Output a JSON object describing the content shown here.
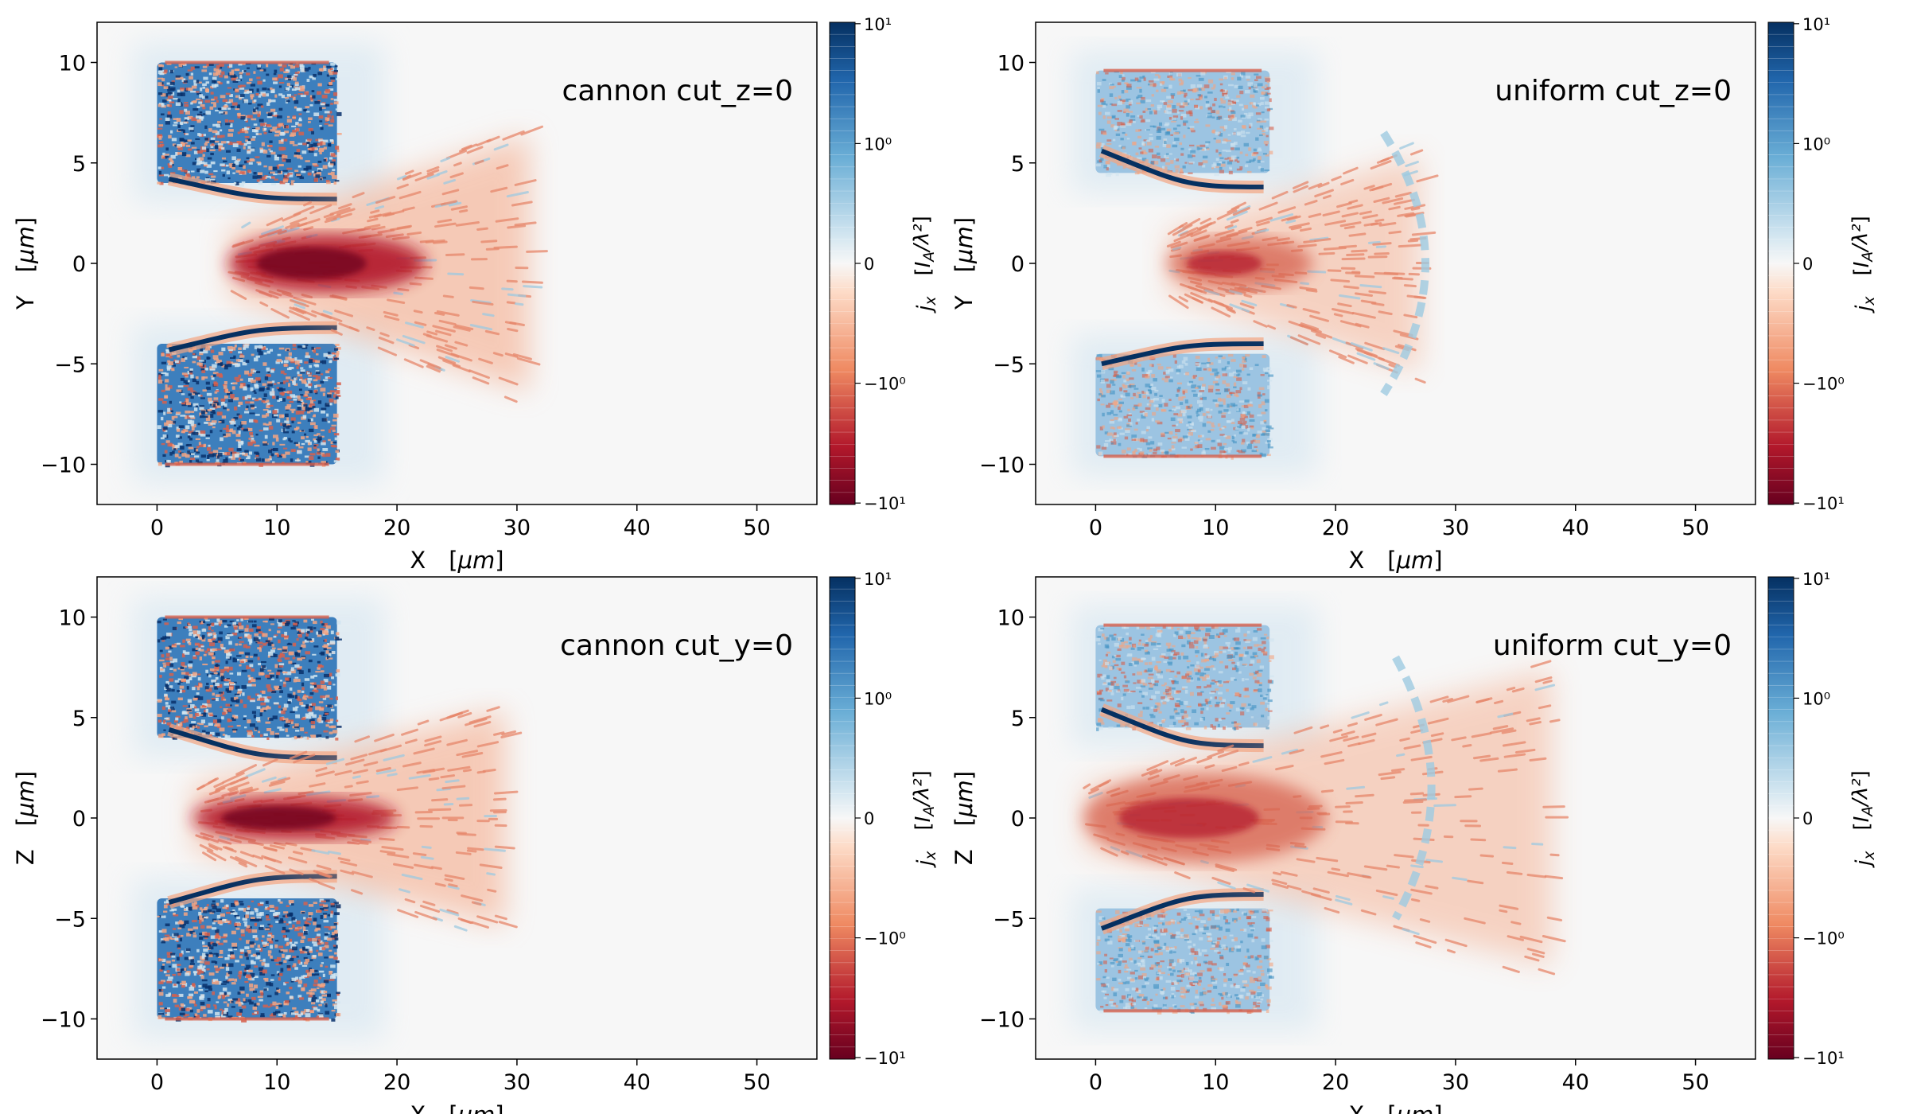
{
  "colors": {
    "background": "#f7f7f7",
    "positive": "#2166ac",
    "positive_deep": "#053061",
    "negative": "#b2182b",
    "negative_deep": "#67001f",
    "zero": "#f7f7f7"
  },
  "colorbar": {
    "label": "j_x [I_A/λ²]",
    "ticks": [
      {
        "label": "10¹",
        "value": 10
      },
      {
        "label": "10⁰",
        "value": 1
      },
      {
        "label": "0",
        "value": 0
      },
      {
        "label": "−10⁰",
        "value": -1
      },
      {
        "label": "−10¹",
        "value": -10
      }
    ],
    "scale": "symlog"
  },
  "chart_data": [
    {
      "type": "heatmap",
      "title": "cannon cut_z=0",
      "xlabel": "X [μm]",
      "ylabel": "Y [μm]",
      "xlim": [
        -5,
        55
      ],
      "ylim": [
        -12,
        12
      ],
      "xticks": [
        0,
        10,
        20,
        30,
        40,
        50
      ],
      "yticks": [
        -10,
        -5,
        0,
        5,
        10
      ],
      "colormap": "RdBu",
      "features": [
        {
          "kind": "positive_block",
          "x": [
            0,
            15
          ],
          "y": [
            4,
            10
          ]
        },
        {
          "kind": "positive_block",
          "x": [
            0,
            15
          ],
          "y": [
            -10,
            -4
          ]
        },
        {
          "kind": "edge_current",
          "x": [
            1,
            15
          ],
          "y": [
            4.2,
            3.2
          ]
        },
        {
          "kind": "edge_current",
          "x": [
            1,
            15
          ],
          "y": [
            -4.3,
            -3.2
          ]
        },
        {
          "kind": "return_jet",
          "x": [
            6,
            31
          ],
          "y": [
            -4,
            4
          ],
          "peak": -12
        }
      ]
    },
    {
      "type": "heatmap",
      "title": "uniform cut_z=0",
      "xlabel": "X [μm]",
      "ylabel": "Y [μm]",
      "xlim": [
        -5,
        55
      ],
      "ylim": [
        -12,
        12
      ],
      "xticks": [
        0,
        10,
        20,
        30,
        40,
        50
      ],
      "yticks": [
        -10,
        -5,
        0,
        5,
        10
      ],
      "colormap": "RdBu",
      "features": [
        {
          "kind": "positive_block",
          "x": [
            0,
            14.5
          ],
          "y": [
            4.5,
            9.6
          ]
        },
        {
          "kind": "positive_block",
          "x": [
            0,
            14.5
          ],
          "y": [
            -9.6,
            -4.5
          ]
        },
        {
          "kind": "edge_current",
          "x": [
            0.5,
            14
          ],
          "y": [
            5.6,
            3.8
          ]
        },
        {
          "kind": "edge_current",
          "x": [
            0.5,
            14
          ],
          "y": [
            -5,
            -4
          ]
        },
        {
          "kind": "return_jet",
          "x": [
            6,
            27
          ],
          "y": [
            -3,
            3
          ],
          "peak": -5
        },
        {
          "kind": "arc",
          "x": [
            24,
            27
          ],
          "y": [
            -6.5,
            6.5
          ]
        }
      ]
    },
    {
      "type": "heatmap",
      "title": "cannon cut_y=0",
      "xlabel": "X [μm]",
      "ylabel": "Z [μm]",
      "xlim": [
        -5,
        55
      ],
      "ylim": [
        -12,
        12
      ],
      "xticks": [
        0,
        10,
        20,
        30,
        40,
        50
      ],
      "yticks": [
        -10,
        -5,
        0,
        5,
        10
      ],
      "colormap": "RdBu",
      "features": [
        {
          "kind": "positive_block",
          "x": [
            0,
            15
          ],
          "y": [
            4,
            10
          ]
        },
        {
          "kind": "positive_block",
          "x": [
            0,
            15
          ],
          "y": [
            -10,
            -4
          ]
        },
        {
          "kind": "edge_current",
          "x": [
            1,
            15
          ],
          "y": [
            4.4,
            3
          ]
        },
        {
          "kind": "edge_current",
          "x": [
            1,
            15
          ],
          "y": [
            -4.2,
            -2.9
          ]
        },
        {
          "kind": "return_jet",
          "x": [
            3,
            29
          ],
          "y": [
            -3,
            3
          ],
          "peak": -12
        }
      ]
    },
    {
      "type": "heatmap",
      "title": "uniform cut_y=0",
      "xlabel": "X [μm]",
      "ylabel": "Z [μm]",
      "xlim": [
        -5,
        55
      ],
      "ylim": [
        -12,
        12
      ],
      "xticks": [
        0,
        10,
        20,
        30,
        40,
        50
      ],
      "yticks": [
        -10,
        -5,
        0,
        5,
        10
      ],
      "colormap": "RdBu",
      "features": [
        {
          "kind": "positive_block",
          "x": [
            0,
            14.5
          ],
          "y": [
            4.5,
            9.6
          ]
        },
        {
          "kind": "positive_block",
          "x": [
            0,
            14.5
          ],
          "y": [
            -9.6,
            -4.5
          ]
        },
        {
          "kind": "edge_current",
          "x": [
            0.5,
            14
          ],
          "y": [
            5.4,
            3.6
          ]
        },
        {
          "kind": "edge_current",
          "x": [
            0.5,
            14
          ],
          "y": [
            -5.5,
            -3.8
          ]
        },
        {
          "kind": "return_jet",
          "x": [
            -1,
            38
          ],
          "y": [
            -5,
            5
          ],
          "peak": -6
        },
        {
          "kind": "arc",
          "x": [
            25,
            27
          ],
          "y": [
            -5,
            8
          ]
        }
      ]
    }
  ]
}
